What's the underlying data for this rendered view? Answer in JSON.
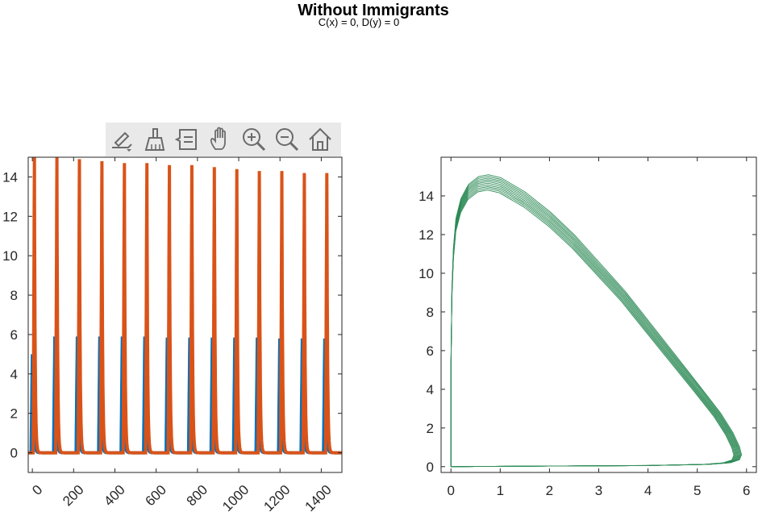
{
  "figure": {
    "title": "Without Immigrants",
    "subtitle": "C(x) = 0, D(y) = 0"
  },
  "toolbar": {
    "buttons": [
      {
        "icon": "edit-plot-icon"
      },
      {
        "icon": "data-brush-icon"
      },
      {
        "icon": "legend-icon"
      },
      {
        "icon": "pan-hand-icon"
      },
      {
        "icon": "zoom-in-icon"
      },
      {
        "icon": "zoom-out-icon"
      },
      {
        "icon": "home-icon"
      }
    ]
  },
  "colors": {
    "series_x": "#0072BD",
    "series_y": "#D95319",
    "phase": "#2E8B57",
    "axis": "#262626"
  },
  "chart_data": [
    {
      "type": "line",
      "title": "",
      "xlabel": "",
      "ylabel": "",
      "xlim": [
        -20,
        1500
      ],
      "ylim": [
        -1,
        15
      ],
      "xticks": [
        0,
        200,
        400,
        600,
        800,
        1000,
        1200,
        1400
      ],
      "yticks": [
        0,
        2,
        4,
        6,
        8,
        10,
        12,
        14
      ],
      "xtick_rotation": 45,
      "grid": false,
      "period": 109,
      "series": [
        {
          "peak_times": [
            0,
            109,
            218,
            327,
            436,
            545,
            654,
            763,
            872,
            981,
            1090,
            1199,
            1308,
            1417
          ],
          "peak_values": [
            5.0,
            5.9,
            5.9,
            5.9,
            5.9,
            5.9,
            5.85,
            5.85,
            5.85,
            5.85,
            5.85,
            5.8,
            5.8,
            5.8
          ]
        },
        {
          "peak_times": [
            10,
            119,
            228,
            337,
            446,
            555,
            664,
            773,
            882,
            991,
            1100,
            1209,
            1318,
            1427
          ],
          "peak_values": [
            15.0,
            15.0,
            14.9,
            14.8,
            14.7,
            14.7,
            14.6,
            14.6,
            14.5,
            14.4,
            14.3,
            14.3,
            14.2,
            14.2
          ]
        }
      ]
    },
    {
      "type": "line",
      "title": "",
      "xlabel": "",
      "ylabel": "",
      "xlim": [
        -0.2,
        6.2
      ],
      "ylim": [
        -0.3,
        16
      ],
      "xticks": [
        0,
        1,
        2,
        3,
        4,
        5,
        6
      ],
      "yticks": [
        0,
        2,
        4,
        6,
        8,
        10,
        12,
        14
      ],
      "grid": false,
      "series": [
        {
          "x": [
            0.0,
            0.0,
            0.02,
            0.05,
            0.1,
            0.2,
            0.35,
            0.55,
            0.75,
            1.0,
            1.5,
            2.0,
            2.5,
            3.0,
            3.5,
            4.0,
            4.5,
            5.0,
            5.4,
            5.65,
            5.78,
            5.82,
            5.78,
            5.6,
            5.2,
            4.0,
            2.0,
            0.5,
            0.0
          ],
          "y": [
            0.0,
            5.0,
            9.0,
            11.0,
            12.5,
            13.5,
            14.2,
            14.6,
            14.7,
            14.55,
            13.8,
            12.8,
            11.6,
            10.2,
            8.8,
            7.2,
            5.6,
            4.0,
            2.7,
            1.7,
            1.0,
            0.6,
            0.35,
            0.2,
            0.12,
            0.06,
            0.03,
            0.01,
            0.0
          ]
        }
      ]
    }
  ]
}
